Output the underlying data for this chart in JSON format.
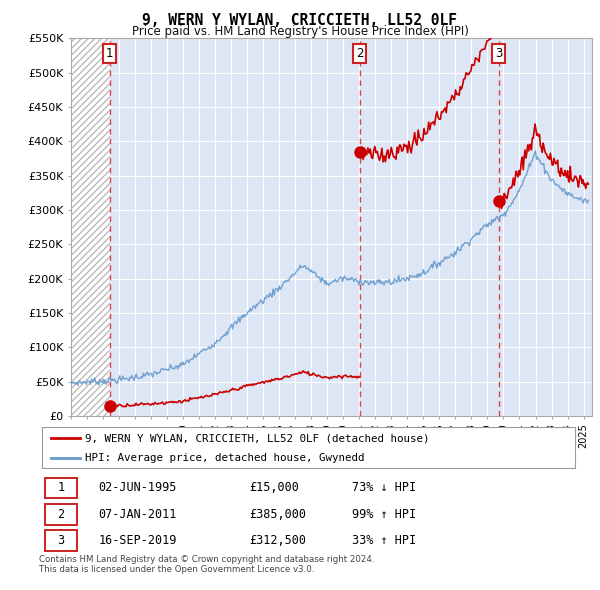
{
  "title": "9, WERN Y WYLAN, CRICCIETH, LL52 0LF",
  "subtitle": "Price paid vs. HM Land Registry's House Price Index (HPI)",
  "ylim": [
    0,
    550000
  ],
  "yticks": [
    0,
    50000,
    100000,
    150000,
    200000,
    250000,
    300000,
    350000,
    400000,
    450000,
    500000,
    550000
  ],
  "ytick_labels": [
    "£0",
    "£50K",
    "£100K",
    "£150K",
    "£200K",
    "£250K",
    "£300K",
    "£350K",
    "£400K",
    "£450K",
    "£500K",
    "£550K"
  ],
  "xlim_start": 1993.0,
  "xlim_end": 2025.5,
  "transactions": [
    {
      "date_num": 1995.42,
      "price": 15000,
      "label": "1"
    },
    {
      "date_num": 2011.03,
      "price": 385000,
      "label": "2"
    },
    {
      "date_num": 2019.71,
      "price": 312500,
      "label": "3"
    }
  ],
  "table_rows": [
    {
      "num": "1",
      "date": "02-JUN-1995",
      "price": "£15,000",
      "hpi": "73% ↓ HPI"
    },
    {
      "num": "2",
      "date": "07-JAN-2011",
      "price": "£385,000",
      "hpi": "99% ↑ HPI"
    },
    {
      "num": "3",
      "date": "16-SEP-2019",
      "price": "£312,500",
      "hpi": "33% ↑ HPI"
    }
  ],
  "legend1": "9, WERN Y WYLAN, CRICCIETH, LL52 0LF (detached house)",
  "legend2": "HPI: Average price, detached house, Gwynedd",
  "footnote": "Contains HM Land Registry data © Crown copyright and database right 2024.\nThis data is licensed under the Open Government Licence v3.0.",
  "property_line_color": "#cc0000",
  "hpi_line_color": "#6699cc",
  "transaction_dot_color": "#cc0000",
  "vline_dashed_color": "#dd4444",
  "vline_solid_color": "#cc0000",
  "grid_color": "#cccccc",
  "bg_color": "#dce6f5",
  "hatch_bg": "#f0f0f0"
}
